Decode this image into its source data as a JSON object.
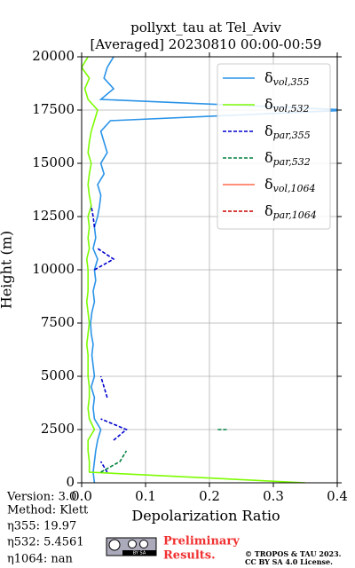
{
  "chart_data": {
    "type": "line",
    "title": [
      "pollyxt_tau at Tel_Aviv",
      "[Averaged] 20230810 00:00-00:59"
    ],
    "x_label": "Depolarization Ratio",
    "y_label": "Height (m)",
    "xlim": [
      0,
      0.4
    ],
    "xticks": [
      {
        "value": 0,
        "label": "0.0"
      },
      0.1,
      0.2,
      0.3,
      0.4
    ],
    "ylim": [
      0,
      20000
    ],
    "yticks": [
      0,
      2500,
      5000,
      7500,
      10000,
      12500,
      15000,
      17500,
      20000
    ],
    "grid": true,
    "legend": "upper right",
    "heights": [
      0,
      500,
      1000,
      1500,
      2000,
      2500,
      3000,
      3500,
      4000,
      4500,
      5000,
      5500,
      6000,
      6500,
      7000,
      7500,
      8000,
      8500,
      9000,
      9500,
      10000,
      10500,
      11000,
      11500,
      12000,
      12500,
      13000,
      13500,
      14000,
      14500,
      15000,
      15500,
      16000,
      16500,
      17000,
      17500,
      18000,
      18500,
      19000,
      19500,
      20000
    ],
    "series": [
      {
        "name": "δvol,355",
        "color": "#2a93e8",
        "dash": false,
        "values": [
          0.02,
          0.018,
          0.02,
          0.022,
          0.025,
          0.03,
          0.02,
          0.018,
          0.02,
          0.015,
          0.02,
          0.018,
          0.016,
          0.018,
          0.015,
          0.014,
          0.016,
          0.02,
          0.018,
          0.022,
          0.02,
          0.025,
          0.018,
          0.022,
          0.02,
          0.025,
          0.028,
          0.03,
          0.025,
          0.035,
          0.03,
          0.04,
          0.035,
          0.03,
          0.045,
          0.42,
          0.03,
          0.05,
          0.035,
          0.04,
          0.05
        ]
      },
      {
        "name": "δvol,532",
        "color": "#7cfc00",
        "dash": false,
        "values": [
          0.35,
          0.012,
          0.012,
          0.01,
          0.01,
          0.02,
          0.012,
          0.01,
          0.012,
          0.012,
          0.01,
          0.01,
          0.01,
          0.008,
          0.01,
          0.012,
          0.01,
          0.008,
          0.01,
          0.01,
          0.01,
          0.008,
          0.012,
          0.01,
          0.012,
          0.01,
          0.015,
          0.012,
          0.01,
          0.012,
          0.015,
          0.01,
          0.012,
          0.015,
          0.02,
          0.025,
          0.01,
          0.005,
          0.012,
          0.0,
          0.01
        ]
      },
      {
        "name": "δpar,355",
        "color": "#0000cd",
        "dash": true,
        "values": [
          null,
          0.04,
          0.03,
          null,
          0.05,
          0.07,
          0.03,
          null,
          0.04,
          0.035,
          0.03,
          null,
          null,
          null,
          null,
          null,
          null,
          null,
          null,
          null,
          0.02,
          0.05,
          0.025,
          null,
          0.02,
          0.018,
          0.015,
          null,
          null,
          null,
          null,
          null,
          null,
          null,
          null,
          null,
          null,
          null,
          null,
          null,
          null
        ]
      },
      {
        "name": "δpar,532",
        "color": "#008040",
        "dash": true,
        "values": [
          null,
          0.03,
          0.06,
          0.07,
          null,
          0.22,
          null,
          null,
          null,
          null,
          null,
          null,
          null,
          null,
          null,
          null,
          null,
          null,
          null,
          null,
          null,
          null,
          null,
          null,
          null,
          null,
          null,
          null,
          null,
          null,
          null,
          null,
          null,
          null,
          null,
          null,
          null,
          null,
          null,
          null,
          null
        ]
      },
      {
        "name": "δvol,1064",
        "color": "#ff6a4d",
        "dash": false,
        "values": [
          null,
          null,
          null,
          null,
          null,
          null,
          null,
          null,
          null,
          null,
          null,
          null,
          null,
          null,
          null,
          null,
          null,
          null,
          null,
          null,
          null,
          null,
          null,
          null,
          null,
          null,
          null,
          null,
          null,
          null,
          null,
          null,
          null,
          null,
          null,
          null,
          null,
          null,
          null,
          null,
          null
        ]
      },
      {
        "name": "δpar,1064",
        "color": "#cc0000",
        "dash": true,
        "values": [
          null,
          null,
          null,
          null,
          null,
          null,
          null,
          null,
          null,
          null,
          null,
          null,
          null,
          null,
          null,
          null,
          null,
          null,
          null,
          null,
          null,
          null,
          null,
          null,
          null,
          null,
          null,
          null,
          null,
          null,
          null,
          null,
          null,
          null,
          null,
          null,
          null,
          null,
          null,
          null,
          null
        ]
      }
    ]
  },
  "footer": {
    "info": [
      "Version: 3.0",
      "Method: Klett",
      "η355:  19.97",
      "η532: 5.4561",
      "η1064:    nan"
    ],
    "badge": "BY SA",
    "preliminary": [
      "Preliminary",
      "Results."
    ],
    "copyright": [
      "© TROPOS & TAU 2023.",
      "CC BY SA 4.0 License."
    ]
  }
}
